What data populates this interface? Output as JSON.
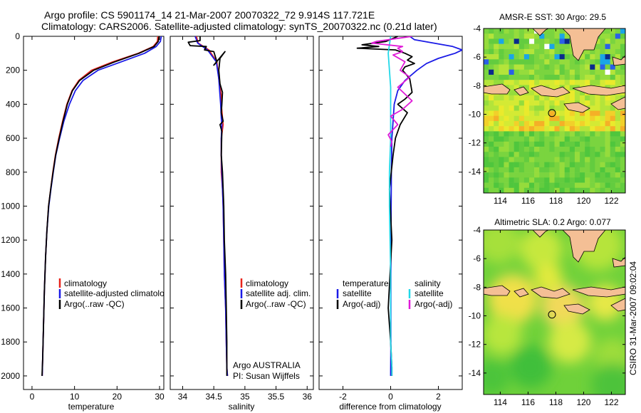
{
  "header": {
    "line1": "Argo profile: CS 5901174_14 21-Mar-2007 20070322_72 9.914S 117.721E",
    "line2": "Climatology: CARS2006. Satellite-adjusted climatology: synTS_20070322.nc (0.21d later)"
  },
  "side_label": "CSIRO 31-Mar-2007 09:02:04",
  "colors": {
    "climatology": "#e8231a",
    "satellite": "#1a1ae6",
    "argo": "#000000",
    "sat_salinity": "#22d8e8",
    "argo_salinity_diff": "#e01ad8"
  },
  "chart_data": [
    {
      "type": "line",
      "id": "temperature",
      "xlabel": "temperature",
      "ylabel": "",
      "xlim": [
        -2,
        31
      ],
      "ylim": [
        2080,
        0
      ],
      "y_inverted": true,
      "xticks": [
        0,
        10,
        20,
        30
      ],
      "xtick_labels": [
        "0",
        "10",
        "20",
        "30"
      ],
      "yticks": [
        0,
        200,
        400,
        600,
        800,
        1000,
        1200,
        1400,
        1600,
        1800,
        2000
      ],
      "ytick_labels": [
        "0",
        "200",
        "400",
        "600",
        "800",
        "1000",
        "1200",
        "1400",
        "1600",
        "1800",
        "2000"
      ],
      "legend": [
        "climatology",
        "satellite-adjusted climatolog",
        "Argo(..raw -QC)"
      ],
      "legend_position": "bottom-left",
      "series": [
        {
          "name": "climatology",
          "color": "#e8231a",
          "x": [
            29.6,
            29.5,
            28.5,
            25,
            19,
            14,
            11,
            9.4,
            8.2,
            7.2,
            6.3,
            5.5,
            4.9,
            4.4,
            3.9,
            3.5,
            3.2,
            2.9,
            2.7,
            2.5,
            2.4
          ],
          "y": [
            0,
            30,
            60,
            100,
            150,
            200,
            260,
            320,
            400,
            500,
            600,
            700,
            800,
            900,
            1000,
            1150,
            1300,
            1500,
            1700,
            1900,
            2000
          ]
        },
        {
          "name": "satellite-adjusted climatolog",
          "color": "#1a1ae6",
          "x": [
            30.4,
            30.2,
            29.2,
            26.5,
            21,
            15.5,
            12,
            10.2,
            8.8,
            7.5,
            6.5,
            5.6,
            5.0,
            4.45,
            3.95,
            3.5,
            3.2,
            2.9,
            2.7,
            2.5,
            2.4
          ],
          "y": [
            0,
            30,
            60,
            100,
            150,
            200,
            260,
            320,
            400,
            500,
            600,
            700,
            800,
            900,
            1000,
            1150,
            1300,
            1500,
            1700,
            1900,
            2000
          ]
        },
        {
          "name": "Argo(..raw -QC)",
          "color": "#000000",
          "x": [
            29.9,
            29.7,
            28.7,
            25.2,
            19.5,
            14.5,
            11.2,
            9.5,
            8.3,
            7.3,
            6.4,
            5.55,
            4.95,
            4.4,
            3.9,
            3.5,
            3.2,
            2.9,
            2.7,
            2.5,
            2.35
          ],
          "y": [
            0,
            30,
            60,
            100,
            150,
            200,
            260,
            320,
            400,
            500,
            600,
            700,
            800,
            900,
            1000,
            1150,
            1300,
            1500,
            1700,
            1900,
            2000
          ]
        }
      ]
    },
    {
      "type": "line",
      "id": "salinity",
      "xlabel": "salinity",
      "xlim": [
        33.8,
        36.1
      ],
      "ylim": [
        2080,
        0
      ],
      "y_inverted": true,
      "xticks": [
        34,
        34.5,
        35,
        35.5,
        36
      ],
      "xtick_labels": [
        "34",
        "34.5",
        "35",
        "35.5",
        "36"
      ],
      "legend": [
        "climatology",
        "satellite adj. clim.",
        "Argo(..raw -QC)"
      ],
      "legend_position": "bottom-left",
      "annotation": [
        "Argo AUSTRALIA",
        "PI: Susan Wijffels"
      ],
      "series": [
        {
          "name": "climatology",
          "color": "#e8231a",
          "x": [
            34.22,
            34.25,
            34.42,
            34.55,
            34.58,
            34.62,
            34.62,
            34.64,
            34.65,
            34.62,
            34.62,
            34.62,
            34.64,
            34.65,
            34.66,
            34.67,
            34.69,
            34.7,
            34.71,
            34.72
          ],
          "y": [
            0,
            40,
            80,
            150,
            250,
            350,
            400,
            480,
            520,
            600,
            700,
            800,
            900,
            1000,
            1200,
            1400,
            1600,
            1800,
            1950,
            2000
          ]
        },
        {
          "name": "satellite adj. clim.",
          "color": "#1a1ae6",
          "x": [
            34.2,
            34.24,
            34.4,
            34.54,
            34.58,
            34.6,
            34.61,
            34.62,
            34.63,
            34.62,
            34.62,
            34.63,
            34.64,
            34.65,
            34.66,
            34.67,
            34.69,
            34.7,
            34.71,
            34.72
          ],
          "y": [
            0,
            40,
            80,
            150,
            250,
            350,
            400,
            480,
            520,
            600,
            700,
            800,
            900,
            1000,
            1200,
            1400,
            1600,
            1800,
            1950,
            2000
          ]
        },
        {
          "name": "Argo(..raw -QC)",
          "color": "#000000",
          "x": [
            34.28,
            34.28,
            34.09,
            34.12,
            34.38,
            34.35,
            34.5,
            34.55,
            34.5,
            34.68,
            34.6,
            34.58,
            34.6,
            34.64,
            34.63,
            34.62,
            34.65,
            34.6,
            34.63,
            34.62,
            34.64,
            34.65,
            34.66,
            34.67,
            34.69,
            34.7,
            34.71,
            34.71
          ],
          "y": [
            0,
            25,
            35,
            55,
            60,
            80,
            90,
            150,
            170,
            90,
            130,
            200,
            280,
            330,
            400,
            450,
            500,
            520,
            560,
            700,
            800,
            900,
            1000,
            1200,
            1400,
            1600,
            1800,
            2000
          ]
        }
      ]
    },
    {
      "type": "line",
      "id": "difference",
      "xlabel": "difference from climatology",
      "xlim": [
        -3,
        3
      ],
      "ylim": [
        2080,
        0
      ],
      "y_inverted": true,
      "xticks": [
        -2,
        0,
        2
      ],
      "xtick_labels": [
        "-2",
        "0",
        "2"
      ],
      "legend_left_title": "temperature",
      "legend_right_title": "salinity",
      "legend_left": [
        "satellite",
        "Argo(-adj)"
      ],
      "legend_right": [
        "satellite",
        "Argo(-adj)"
      ],
      "legend_position": "bottom",
      "series": [
        {
          "name": "temperature satellite",
          "color": "#1a1ae6",
          "x": [
            0.8,
            1.0,
            1.8,
            2.6,
            3.0,
            2.7,
            2.0,
            1.5,
            1.1,
            0.6,
            0.3,
            0.15,
            0.1,
            0.05,
            0.03,
            0.02,
            0.01,
            0.01,
            0.0
          ],
          "y": [
            0,
            20,
            40,
            60,
            80,
            100,
            130,
            160,
            200,
            260,
            320,
            400,
            500,
            600,
            800,
            1000,
            1400,
            1800,
            2000
          ]
        },
        {
          "name": "temperature Argo(-adj)",
          "color": "#000000",
          "x": [
            0.3,
            -0.2,
            -1.2,
            -0.5,
            -1.4,
            0.2,
            0.6,
            0.9,
            0.7,
            1.0,
            0.6,
            0.5,
            0.8,
            0.9,
            0.6,
            0.3,
            0.7,
            0.4,
            0.2,
            0.1,
            -0.05,
            0.05,
            -0.1,
            0.0,
            0.05,
            0.05
          ],
          "y": [
            0,
            30,
            50,
            60,
            70,
            80,
            100,
            120,
            140,
            160,
            180,
            200,
            250,
            330,
            370,
            400,
            450,
            520,
            600,
            700,
            900,
            1200,
            1600,
            1800,
            1950,
            2000
          ]
        },
        {
          "name": "salinity satellite",
          "color": "#22d8e8",
          "x": [
            0.0,
            -0.05,
            -0.1,
            -0.05,
            0.0,
            0.0,
            0.0,
            0.0,
            -0.05,
            -0.05,
            0.0,
            0.0,
            0.05,
            0.05
          ],
          "y": [
            0,
            50,
            100,
            200,
            300,
            400,
            500,
            600,
            800,
            1000,
            1400,
            1800,
            1950,
            2000
          ]
        },
        {
          "name": "salinity Argo(-adj)",
          "color": "#e01ad8",
          "x": [
            0.9,
            -0.6,
            -0.8,
            0.5,
            0.3,
            0.5,
            0.1,
            0.6,
            0.4,
            0.8,
            0.3,
            0.9,
            0.5,
            0.0,
            0.3,
            -0.1,
            0.05,
            0.0
          ],
          "y": [
            0,
            30,
            40,
            60,
            70,
            90,
            110,
            150,
            200,
            240,
            300,
            380,
            430,
            470,
            520,
            580,
            620,
            650
          ]
        }
      ]
    },
    {
      "type": "heatmap",
      "id": "sst_map",
      "title": "AMSR-E SST: 30 Argo: 29.5",
      "xlim": [
        112.8,
        123
      ],
      "ylim": [
        -15.5,
        -4
      ],
      "xticks": [
        114,
        116,
        118,
        120,
        122
      ],
      "xtick_labels": [
        "114",
        "116",
        "118",
        "120",
        "122"
      ],
      "yticks": [
        -4,
        -6,
        -8,
        -10,
        -12,
        -14
      ],
      "ytick_labels": [
        "-4",
        "-6",
        "-8",
        "-10",
        "-12",
        "-14"
      ],
      "marker": {
        "lon": 117.721,
        "lat": -9.914
      }
    },
    {
      "type": "heatmap",
      "id": "sla_map",
      "title": "Altimetric SLA: 0.2 Argo: 0.077",
      "xlim": [
        112.8,
        123
      ],
      "ylim": [
        -15.5,
        -4
      ],
      "xticks": [
        114,
        116,
        118,
        120,
        122
      ],
      "xtick_labels": [
        "114",
        "116",
        "118",
        "120",
        "122"
      ],
      "yticks": [
        -4,
        -6,
        -8,
        -10,
        -12,
        -14
      ],
      "ytick_labels": [
        "-4",
        "-6",
        "-8",
        "-10",
        "-12",
        "-14"
      ],
      "marker": {
        "lon": 117.721,
        "lat": -9.914
      }
    }
  ]
}
